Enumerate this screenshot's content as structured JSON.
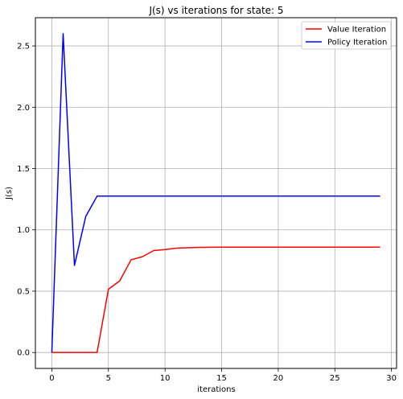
{
  "chart_data": {
    "type": "line",
    "title": "J(s) vs iterations for state: 5",
    "xlabel": "iterations",
    "ylabel": "J(s)",
    "xlim": [
      -1.45,
      30.45
    ],
    "ylim": [
      -0.13,
      2.73
    ],
    "xticks": [
      0,
      5,
      10,
      15,
      20,
      25,
      30
    ],
    "yticks": [
      0.0,
      0.5,
      1.0,
      1.5,
      2.0,
      2.5
    ],
    "xtick_labels": [
      "0",
      "5",
      "10",
      "15",
      "20",
      "25",
      "30"
    ],
    "ytick_labels": [
      "0.0",
      "0.5",
      "1.0",
      "1.5",
      "2.0",
      "2.5"
    ],
    "grid": true,
    "legend_position": "top-right",
    "x": [
      0,
      1,
      2,
      3,
      4,
      5,
      6,
      7,
      8,
      9,
      10,
      11,
      12,
      13,
      14,
      15,
      16,
      17,
      18,
      19,
      20,
      21,
      22,
      23,
      24,
      25,
      26,
      27,
      28,
      29
    ],
    "series": [
      {
        "name": "Value Iteration",
        "color": "#ff0000",
        "values": [
          0,
          0,
          0,
          0,
          0,
          0.516,
          0.584,
          0.756,
          0.781,
          0.831,
          0.839,
          0.851,
          0.854,
          0.857,
          0.858,
          0.859,
          0.859,
          0.859,
          0.859,
          0.859,
          0.859,
          0.859,
          0.859,
          0.859,
          0.859,
          0.859,
          0.859,
          0.859,
          0.859,
          0.859
        ]
      },
      {
        "name": "Policy Iteration",
        "color": "#0000ff",
        "values": [
          0,
          2.6,
          0.71,
          1.11,
          1.275,
          1.275,
          1.275,
          1.275,
          1.275,
          1.275,
          1.275,
          1.275,
          1.275,
          1.275,
          1.275,
          1.275,
          1.275,
          1.275,
          1.275,
          1.275,
          1.275,
          1.275,
          1.275,
          1.275,
          1.275,
          1.275,
          1.275,
          1.275,
          1.275,
          1.275
        ]
      }
    ]
  }
}
